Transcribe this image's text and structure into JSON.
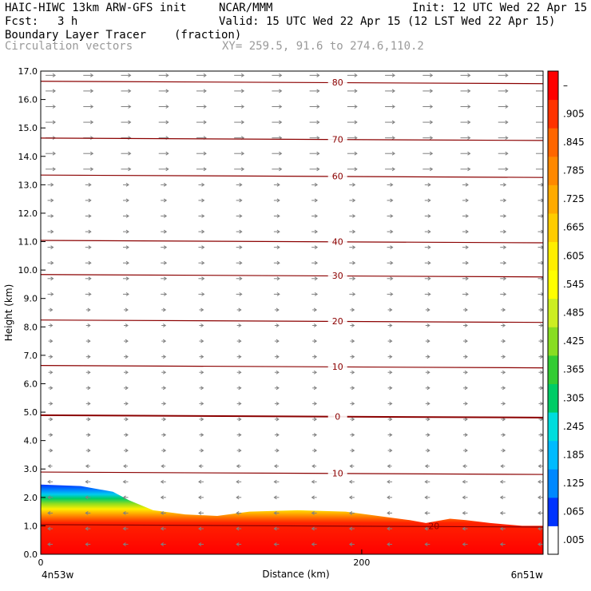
{
  "header": {
    "model": "HAIC-HIWC 13km ARW-GFS init",
    "org": "NCAR/MMM",
    "init": "Init: 12 UTC Wed 22 Apr 15",
    "fcst_label": "Fcst:",
    "fcst_value": "3 h",
    "valid": "Valid: 15 UTC Wed 22 Apr 15 (12 LST Wed 22 Apr 15)",
    "field": "Boundary Layer Tracer",
    "field_units": "(fraction)",
    "overlay": "Circulation vectors",
    "xy": "XY= 259.5, 91.6 to 274.6,110.2"
  },
  "chart_data": {
    "type": "heatmap",
    "title": "Boundary Layer Tracer",
    "units": "(fraction)",
    "xlabel": "Distance (km)",
    "ylabel": "Height (km)",
    "xlim": [
      0,
      313
    ],
    "ylim": [
      0,
      17
    ],
    "x_ticks": [
      {
        "value": 0,
        "label": "0"
      },
      {
        "value": 200,
        "label": "200"
      }
    ],
    "x_end_labels": {
      "left": "4n53w",
      "right": "6n51w"
    },
    "y_ticks": [
      "0.0",
      "1.0",
      "2.0",
      "3.0",
      "4.0",
      "5.0",
      "6.0",
      "7.0",
      "8.0",
      "9.0",
      "10.0",
      "11.0",
      "12.0",
      "13.0",
      "14.0",
      "15.0",
      "16.0",
      "17.0"
    ],
    "colorbar": {
      "labels": [
        ".005",
        ".065",
        ".125",
        ".185",
        ".245",
        ".305",
        ".365",
        ".425",
        ".485",
        ".545",
        ".605",
        ".665",
        ".725",
        ".785",
        ".845",
        ".905",
        "–"
      ],
      "colors": [
        "#ffffff",
        "#0033ff",
        "#0088ff",
        "#00bbff",
        "#00dddd",
        "#00cc66",
        "#33cc33",
        "#88dd22",
        "#ccee22",
        "#ffff00",
        "#ffee00",
        "#ffcc00",
        "#ffaa00",
        "#ff8800",
        "#ff6600",
        "#ff3300",
        "#ff0000"
      ]
    },
    "boundary_layer_top_km": {
      "x": [
        0,
        25,
        45,
        55,
        70,
        90,
        110,
        130,
        160,
        190,
        230,
        240,
        255,
        265,
        280,
        300,
        313
      ],
      "y": [
        2.45,
        2.4,
        2.2,
        1.9,
        1.55,
        1.4,
        1.35,
        1.5,
        1.55,
        1.5,
        1.2,
        1.1,
        1.25,
        1.2,
        1.1,
        1.0,
        1.0
      ]
    },
    "temperature_contours": [
      {
        "label": "80",
        "height_km": 16.6
      },
      {
        "label": "70",
        "height_km": 14.6
      },
      {
        "label": "60",
        "height_km": 13.3
      },
      {
        "label": "40",
        "height_km": 11.0
      },
      {
        "label": "30",
        "height_km": 9.8
      },
      {
        "label": "20",
        "height_km": 8.2
      },
      {
        "label": "10",
        "height_km": 6.6
      },
      {
        "label": "0",
        "height_km": 4.85
      },
      {
        "label": "10",
        "height_km": 2.85
      },
      {
        "label": "20",
        "height_km": 1.0
      }
    ]
  }
}
